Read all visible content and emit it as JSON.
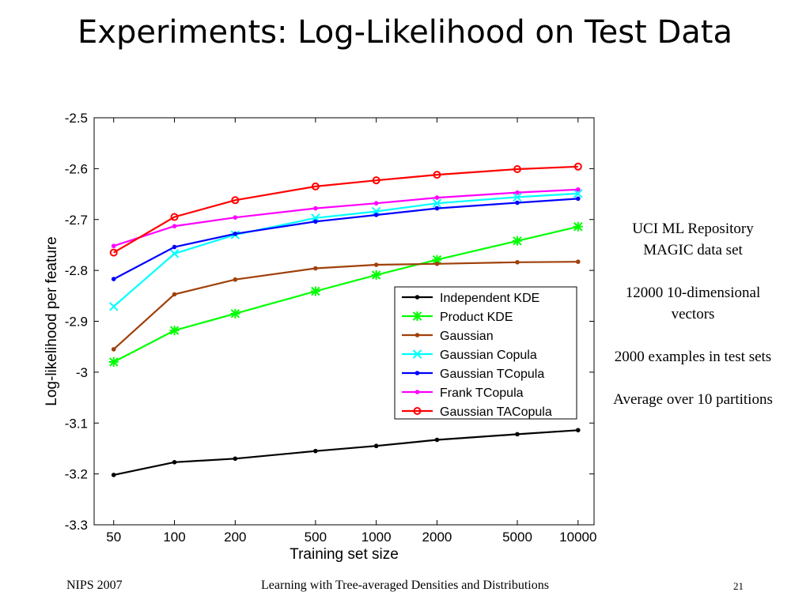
{
  "slide": {
    "title": "Experiments: Log-Likelihood on Test Data",
    "notes": [
      "UCI ML Repository MAGIC data set",
      "12000 10-dimensional vectors",
      "2000 examples in test sets",
      "Average over 10 partitions"
    ],
    "footer_left": "NIPS 2007",
    "footer_center": "Learning with Tree-averaged Densities and Distributions",
    "page_number": "21"
  },
  "chart_data": {
    "type": "line",
    "xlabel": "Training set size",
    "ylabel": "Log-likelihood per feature",
    "x_scale": "log",
    "x": [
      50,
      100,
      200,
      500,
      1000,
      2000,
      5000,
      10000
    ],
    "x_tick_labels": [
      "50",
      "100",
      "200",
      "500",
      "1000",
      "2000",
      "5000",
      "10000"
    ],
    "ylim": [
      -3.3,
      -2.5
    ],
    "y_ticks": [
      -2.5,
      -2.6,
      -2.7,
      -2.8,
      -2.9,
      -3.0,
      -3.1,
      -3.2,
      -3.3
    ],
    "y_tick_labels": [
      "-2.5",
      "-2.6",
      "-2.7",
      "-2.8",
      "-2.9",
      "-3",
      "-3.1",
      "-3.2",
      "-3.3"
    ],
    "grid": false,
    "legend_position": "lower-right",
    "series": [
      {
        "name": "Independent KDE",
        "color": "#000000",
        "marker": "dot",
        "values": [
          -3.202,
          -3.177,
          -3.17,
          -3.155,
          -3.145,
          -3.133,
          -3.122,
          -3.114
        ]
      },
      {
        "name": "Product KDE",
        "color": "#00ff00",
        "marker": "asterisk",
        "values": [
          -2.98,
          -2.918,
          -2.885,
          -2.841,
          -2.809,
          -2.779,
          -2.742,
          -2.714
        ]
      },
      {
        "name": "Gaussian",
        "color": "#a0400a",
        "marker": "dot",
        "values": [
          -2.955,
          -2.847,
          -2.818,
          -2.796,
          -2.789,
          -2.787,
          -2.784,
          -2.783
        ]
      },
      {
        "name": "Gaussian Copula",
        "color": "#00ffff",
        "marker": "x",
        "values": [
          -2.871,
          -2.767,
          -2.73,
          -2.697,
          -2.684,
          -2.668,
          -2.656,
          -2.649
        ]
      },
      {
        "name": "Gaussian TCopula",
        "color": "#0000ff",
        "marker": "dot",
        "values": [
          -2.817,
          -2.754,
          -2.728,
          -2.704,
          -2.691,
          -2.678,
          -2.667,
          -2.659
        ]
      },
      {
        "name": "Frank TCopula",
        "color": "#ff00ff",
        "marker": "dot",
        "values": [
          -2.752,
          -2.713,
          -2.696,
          -2.678,
          -2.668,
          -2.657,
          -2.647,
          -2.641
        ]
      },
      {
        "name": "Gaussian TACopula",
        "color": "#ff0000",
        "marker": "circle",
        "values": [
          -2.765,
          -2.695,
          -2.662,
          -2.635,
          -2.623,
          -2.612,
          -2.601,
          -2.596
        ]
      }
    ]
  }
}
